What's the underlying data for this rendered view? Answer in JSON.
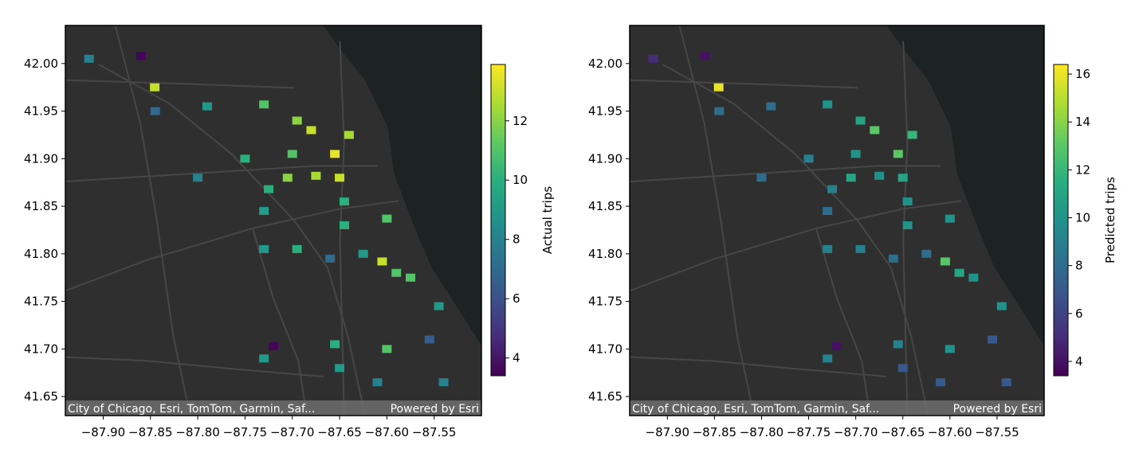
{
  "chart_data": [
    {
      "type": "heatmap",
      "colorbar_label": "Actual trips",
      "xticks": [
        -87.9,
        -87.85,
        -87.8,
        -87.75,
        -87.7,
        -87.65,
        -87.6,
        -87.55
      ],
      "xtick_labels": [
        "−87.90",
        "−87.85",
        "−87.80",
        "−87.75",
        "−87.70",
        "−87.65",
        "−87.60",
        "−87.55"
      ],
      "yticks": [
        41.65,
        41.7,
        41.75,
        41.8,
        41.85,
        41.9,
        41.95,
        42.0
      ],
      "ytick_labels": [
        "41.65",
        "41.70",
        "41.75",
        "41.80",
        "41.85",
        "41.90",
        "41.95",
        "42.00"
      ],
      "xlim": [
        -87.94,
        -87.5
      ],
      "ylim": [
        41.63,
        42.04
      ],
      "colorbar_range": [
        3.4,
        13.9
      ],
      "colorbar_ticks": [
        4,
        6,
        8,
        10,
        12
      ],
      "colorbar_tick_labels": [
        "4",
        "6",
        "8",
        "10",
        "12"
      ],
      "colormap": "viridis",
      "basemap_attribution": "City of Chicago, Esri, TomTom, Garmin, Saf...",
      "basemap_credit": "Powered by Esri",
      "areas": [
        {
          "lon": -87.915,
          "lat": 42.005,
          "value": 8
        },
        {
          "lon": -87.8455,
          "lat": 41.975,
          "value": 13
        },
        {
          "lon": -87.845,
          "lat": 41.95,
          "value": 7
        },
        {
          "lon": -87.79,
          "lat": 41.955,
          "value": 9
        },
        {
          "lon": -87.73,
          "lat": 41.957,
          "value": 11
        },
        {
          "lon": -87.695,
          "lat": 41.94,
          "value": 12
        },
        {
          "lon": -87.68,
          "lat": 41.93,
          "value": 13
        },
        {
          "lon": -87.655,
          "lat": 41.905,
          "value": 13.5
        },
        {
          "lon": -87.65,
          "lat": 41.88,
          "value": 13
        },
        {
          "lon": -87.64,
          "lat": 41.925,
          "value": 12.5
        },
        {
          "lon": -87.7,
          "lat": 41.905,
          "value": 11
        },
        {
          "lon": -87.75,
          "lat": 41.9,
          "value": 10
        },
        {
          "lon": -87.8,
          "lat": 41.88,
          "value": 8
        },
        {
          "lon": -87.705,
          "lat": 41.88,
          "value": 12
        },
        {
          "lon": -87.675,
          "lat": 41.882,
          "value": 12.5
        },
        {
          "lon": -87.725,
          "lat": 41.868,
          "value": 10
        },
        {
          "lon": -87.73,
          "lat": 41.845,
          "value": 9
        },
        {
          "lon": -87.645,
          "lat": 41.855,
          "value": 10
        },
        {
          "lon": -87.645,
          "lat": 41.83,
          "value": 10
        },
        {
          "lon": -87.6,
          "lat": 41.837,
          "value": 11
        },
        {
          "lon": -87.73,
          "lat": 41.805,
          "value": 9
        },
        {
          "lon": -87.695,
          "lat": 41.805,
          "value": 10
        },
        {
          "lon": -87.66,
          "lat": 41.795,
          "value": 7
        },
        {
          "lon": -87.625,
          "lat": 41.8,
          "value": 9
        },
        {
          "lon": -87.605,
          "lat": 41.792,
          "value": 13
        },
        {
          "lon": -87.59,
          "lat": 41.78,
          "value": 11
        },
        {
          "lon": -87.575,
          "lat": 41.775,
          "value": 11
        },
        {
          "lon": -87.545,
          "lat": 41.745,
          "value": 9
        },
        {
          "lon": -87.555,
          "lat": 41.71,
          "value": 6.5
        },
        {
          "lon": -87.6,
          "lat": 41.7,
          "value": 11
        },
        {
          "lon": -87.61,
          "lat": 41.665,
          "value": 8
        },
        {
          "lon": -87.54,
          "lat": 41.665,
          "value": 8
        },
        {
          "lon": -87.73,
          "lat": 41.69,
          "value": 9
        },
        {
          "lon": -87.72,
          "lat": 41.703,
          "value": 3.5
        },
        {
          "lon": -87.86,
          "lat": 42.008,
          "value": 3.5
        },
        {
          "lon": -87.655,
          "lat": 41.705,
          "value": 10
        },
        {
          "lon": -87.65,
          "lat": 41.68,
          "value": 9
        }
      ]
    },
    {
      "type": "heatmap",
      "colorbar_label": "Predicted trips",
      "xticks": [
        -87.9,
        -87.85,
        -87.8,
        -87.75,
        -87.7,
        -87.65,
        -87.6,
        -87.55
      ],
      "xtick_labels": [
        "−87.90",
        "−87.85",
        "−87.80",
        "−87.75",
        "−87.70",
        "−87.65",
        "−87.60",
        "−87.55"
      ],
      "yticks": [
        41.65,
        41.7,
        41.75,
        41.8,
        41.85,
        41.9,
        41.95,
        42.0
      ],
      "ytick_labels": [
        "41.65",
        "41.70",
        "41.75",
        "41.80",
        "41.85",
        "41.90",
        "41.95",
        "42.00"
      ],
      "xlim": [
        -87.94,
        -87.5
      ],
      "ylim": [
        41.63,
        42.04
      ],
      "colorbar_range": [
        3.4,
        16.4
      ],
      "colorbar_ticks": [
        4,
        6,
        8,
        10,
        12,
        14,
        16
      ],
      "colorbar_tick_labels": [
        "4",
        "6",
        "8",
        "10",
        "12",
        "14",
        "16"
      ],
      "colormap": "viridis",
      "basemap_attribution": "City of Chicago, Esri, TomTom, Garmin, Saf...",
      "basemap_credit": "Powered by Esri",
      "areas": [
        {
          "lon": -87.915,
          "lat": 42.005,
          "value": 5
        },
        {
          "lon": -87.8455,
          "lat": 41.975,
          "value": 16
        },
        {
          "lon": -87.845,
          "lat": 41.95,
          "value": 8
        },
        {
          "lon": -87.79,
          "lat": 41.955,
          "value": 8
        },
        {
          "lon": -87.73,
          "lat": 41.957,
          "value": 10
        },
        {
          "lon": -87.695,
          "lat": 41.94,
          "value": 11
        },
        {
          "lon": -87.68,
          "lat": 41.93,
          "value": 13
        },
        {
          "lon": -87.655,
          "lat": 41.905,
          "value": 13
        },
        {
          "lon": -87.65,
          "lat": 41.88,
          "value": 11
        },
        {
          "lon": -87.64,
          "lat": 41.925,
          "value": 12
        },
        {
          "lon": -87.7,
          "lat": 41.905,
          "value": 10
        },
        {
          "lon": -87.75,
          "lat": 41.9,
          "value": 9
        },
        {
          "lon": -87.8,
          "lat": 41.88,
          "value": 8
        },
        {
          "lon": -87.705,
          "lat": 41.88,
          "value": 11
        },
        {
          "lon": -87.675,
          "lat": 41.882,
          "value": 10
        },
        {
          "lon": -87.725,
          "lat": 41.868,
          "value": 9
        },
        {
          "lon": -87.73,
          "lat": 41.845,
          "value": 8
        },
        {
          "lon": -87.645,
          "lat": 41.855,
          "value": 10
        },
        {
          "lon": -87.645,
          "lat": 41.83,
          "value": 10
        },
        {
          "lon": -87.6,
          "lat": 41.837,
          "value": 10
        },
        {
          "lon": -87.73,
          "lat": 41.805,
          "value": 9
        },
        {
          "lon": -87.695,
          "lat": 41.805,
          "value": 9
        },
        {
          "lon": -87.66,
          "lat": 41.795,
          "value": 8
        },
        {
          "lon": -87.625,
          "lat": 41.8,
          "value": 8
        },
        {
          "lon": -87.605,
          "lat": 41.792,
          "value": 13
        },
        {
          "lon": -87.59,
          "lat": 41.78,
          "value": 11
        },
        {
          "lon": -87.575,
          "lat": 41.775,
          "value": 10
        },
        {
          "lon": -87.545,
          "lat": 41.745,
          "value": 10
        },
        {
          "lon": -87.555,
          "lat": 41.71,
          "value": 7
        },
        {
          "lon": -87.6,
          "lat": 41.7,
          "value": 10
        },
        {
          "lon": -87.61,
          "lat": 41.665,
          "value": 7
        },
        {
          "lon": -87.54,
          "lat": 41.665,
          "value": 7
        },
        {
          "lon": -87.73,
          "lat": 41.69,
          "value": 9
        },
        {
          "lon": -87.72,
          "lat": 41.703,
          "value": 4
        },
        {
          "lon": -87.86,
          "lat": 42.008,
          "value": 4
        },
        {
          "lon": -87.655,
          "lat": 41.705,
          "value": 9
        },
        {
          "lon": -87.65,
          "lat": 41.68,
          "value": 7
        }
      ]
    }
  ]
}
